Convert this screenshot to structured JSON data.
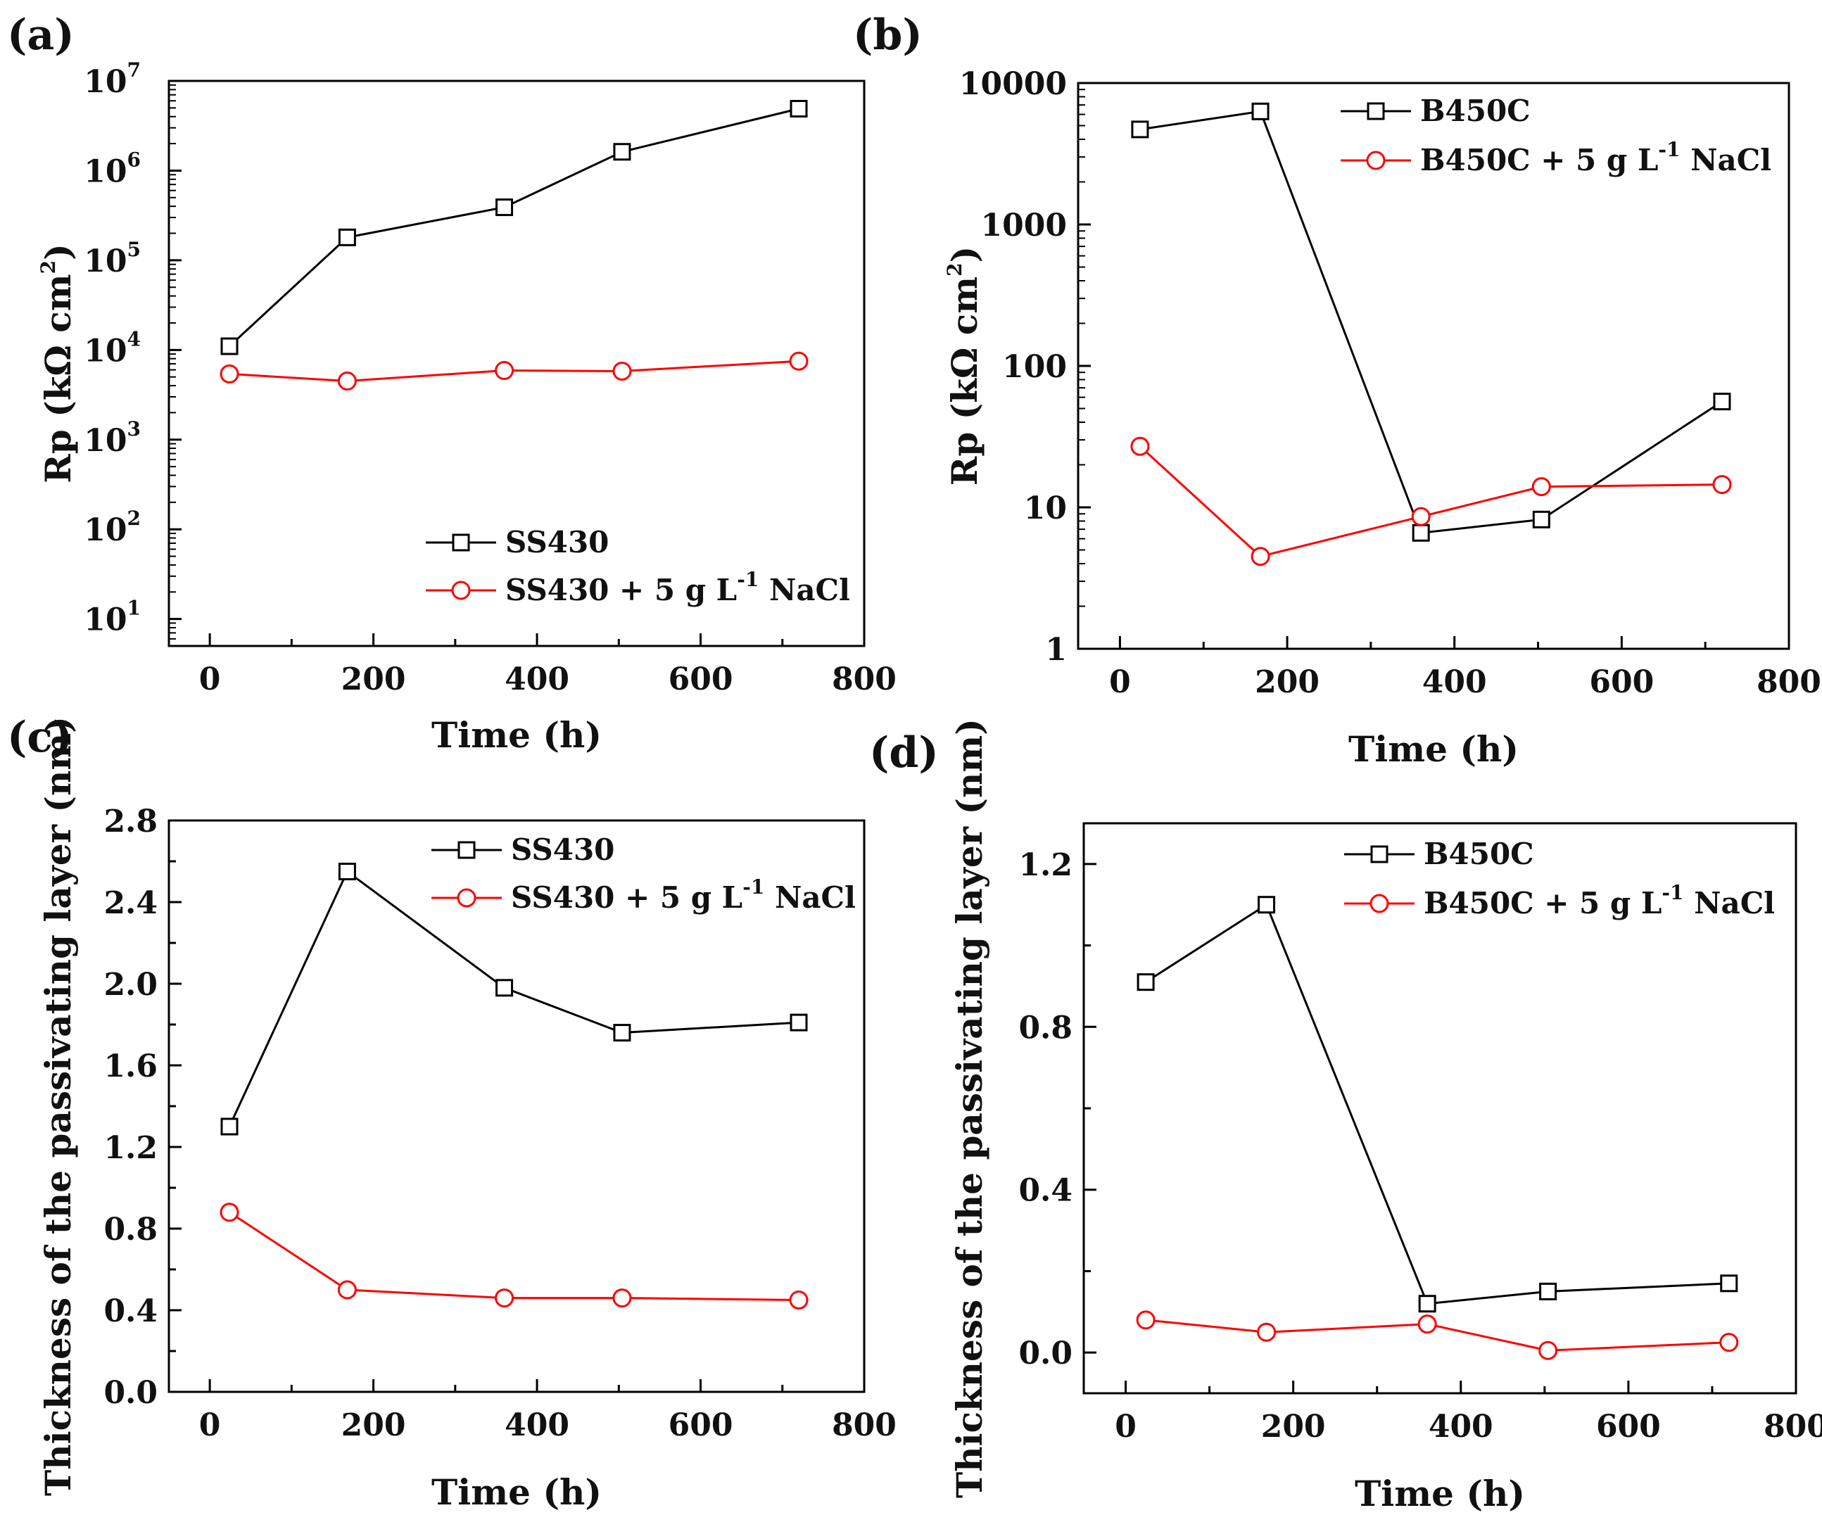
{
  "chart_data": [
    {
      "panel": "(a)",
      "type": "line",
      "yscale": "log",
      "xlabel": "Time (h)",
      "ylabel": "Rp (kΩ cm²)",
      "xlim": [
        -50,
        800
      ],
      "xticks": [
        0,
        200,
        400,
        600,
        800
      ],
      "xtick_labels": [
        "0",
        "200",
        "400",
        "600",
        "800"
      ],
      "ylim": [
        5,
        10000000
      ],
      "yticks": [
        10,
        100,
        1000,
        10000,
        100000,
        1000000,
        10000000
      ],
      "ytick_labels": [
        {
          "base": "10",
          "exp": "1"
        },
        {
          "base": "10",
          "exp": "2"
        },
        {
          "base": "10",
          "exp": "3"
        },
        {
          "base": "10",
          "exp": "4"
        },
        {
          "base": "10",
          "exp": "5"
        },
        {
          "base": "10",
          "exp": "6"
        },
        {
          "base": "10",
          "exp": "7"
        }
      ],
      "legend_position": "bottom-right",
      "series": [
        {
          "name": "SS430",
          "marker": "square",
          "color": "#000000",
          "x": [
            24,
            168,
            360,
            504,
            720
          ],
          "y": [
            11000,
            180000,
            390000,
            1620000,
            4900000
          ]
        },
        {
          "name": "SS430 + 5 g L-1 NaCl",
          "label_parts": {
            "pre": "SS430 + 5 g L",
            "sup": "-1",
            "post": " NaCl"
          },
          "marker": "circle",
          "color": "#ff0000",
          "x": [
            24,
            168,
            360,
            504,
            720
          ],
          "y": [
            5400,
            4500,
            5900,
            5800,
            7500
          ]
        }
      ]
    },
    {
      "panel": "(b)",
      "type": "line",
      "yscale": "log",
      "xlabel": "Time (h)",
      "ylabel": "Rp (kΩ cm²)",
      "xlim": [
        -50,
        800
      ],
      "xticks": [
        0,
        200,
        400,
        600,
        800
      ],
      "xtick_labels": [
        "0",
        "200",
        "400",
        "600",
        "800"
      ],
      "ylim": [
        1,
        10000
      ],
      "yticks": [
        1,
        10,
        100,
        1000,
        10000
      ],
      "ytick_labels": [
        {
          "base": "1"
        },
        {
          "base": "10"
        },
        {
          "base": "100"
        },
        {
          "base": "1000"
        },
        {
          "base": "10000"
        }
      ],
      "legend_position": "top-right",
      "series": [
        {
          "name": "B450C",
          "marker": "square",
          "color": "#000000",
          "x": [
            24,
            168,
            360,
            504,
            720
          ],
          "y": [
            4700,
            6300,
            6.6,
            8.2,
            56
          ]
        },
        {
          "name": "B450C + 5 g L-1 NaCl",
          "label_parts": {
            "pre": "B450C + 5 g L",
            "sup": "-1",
            "post": " NaCl"
          },
          "marker": "circle",
          "color": "#ff0000",
          "x": [
            24,
            168,
            360,
            504,
            720
          ],
          "y": [
            27,
            4.5,
            8.6,
            14,
            14.5
          ]
        }
      ]
    },
    {
      "panel": "(c)",
      "type": "line",
      "yscale": "linear",
      "xlabel": "Time (h)",
      "ylabel": "Thickness of the passivating layer (nm)",
      "xlim": [
        -50,
        800
      ],
      "xticks": [
        0,
        200,
        400,
        600,
        800
      ],
      "xtick_labels": [
        "0",
        "200",
        "400",
        "600",
        "800"
      ],
      "ylim": [
        0,
        2.8
      ],
      "yticks": [
        0,
        0.4,
        0.8,
        1.2,
        1.6,
        2.0,
        2.4,
        2.8
      ],
      "ytick_labels": [
        {
          "base": "0.0"
        },
        {
          "base": "0.4"
        },
        {
          "base": "0.8"
        },
        {
          "base": "1.2"
        },
        {
          "base": "1.6"
        },
        {
          "base": "2.0"
        },
        {
          "base": "2.4"
        },
        {
          "base": "2.8"
        }
      ],
      "legend_position": "top-right",
      "series": [
        {
          "name": "SS430",
          "marker": "square",
          "color": "#000000",
          "x": [
            24,
            168,
            360,
            504,
            720
          ],
          "y": [
            1.3,
            2.55,
            1.98,
            1.76,
            1.81
          ]
        },
        {
          "name": "SS430 + 5 g L-1 NaCl",
          "label_parts": {
            "pre": "SS430 + 5 g L",
            "sup": "-1",
            "post": " NaCl"
          },
          "marker": "circle",
          "color": "#ff0000",
          "x": [
            24,
            168,
            360,
            504,
            720
          ],
          "y": [
            0.88,
            0.5,
            0.46,
            0.46,
            0.45
          ]
        }
      ]
    },
    {
      "panel": "(d)",
      "type": "line",
      "yscale": "linear",
      "xlabel": "Time (h)",
      "ylabel": "Thickness of the passivating layer (nm)",
      "xlim": [
        -50,
        800
      ],
      "xticks": [
        0,
        200,
        400,
        600,
        800
      ],
      "xtick_labels": [
        "0",
        "200",
        "400",
        "600",
        "800"
      ],
      "ylim": [
        -0.1,
        1.3
      ],
      "yticks": [
        0,
        0.4,
        0.8,
        1.2
      ],
      "ytick_labels": [
        {
          "base": "0.0"
        },
        {
          "base": "0.4"
        },
        {
          "base": "0.8"
        },
        {
          "base": "1.2"
        }
      ],
      "legend_position": "top-right",
      "series": [
        {
          "name": "B450C",
          "marker": "square",
          "color": "#000000",
          "x": [
            24,
            168,
            360,
            504,
            720
          ],
          "y": [
            0.91,
            1.1,
            0.12,
            0.15,
            0.17
          ]
        },
        {
          "name": "B450C + 5 g L-1 NaCl",
          "label_parts": {
            "pre": "B450C + 5 g L",
            "sup": "-1",
            "post": " NaCl"
          },
          "marker": "circle",
          "color": "#ff0000",
          "x": [
            24,
            168,
            360,
            504,
            720
          ],
          "y": [
            0.08,
            0.05,
            0.07,
            0.005,
            0.025
          ]
        }
      ]
    }
  ]
}
